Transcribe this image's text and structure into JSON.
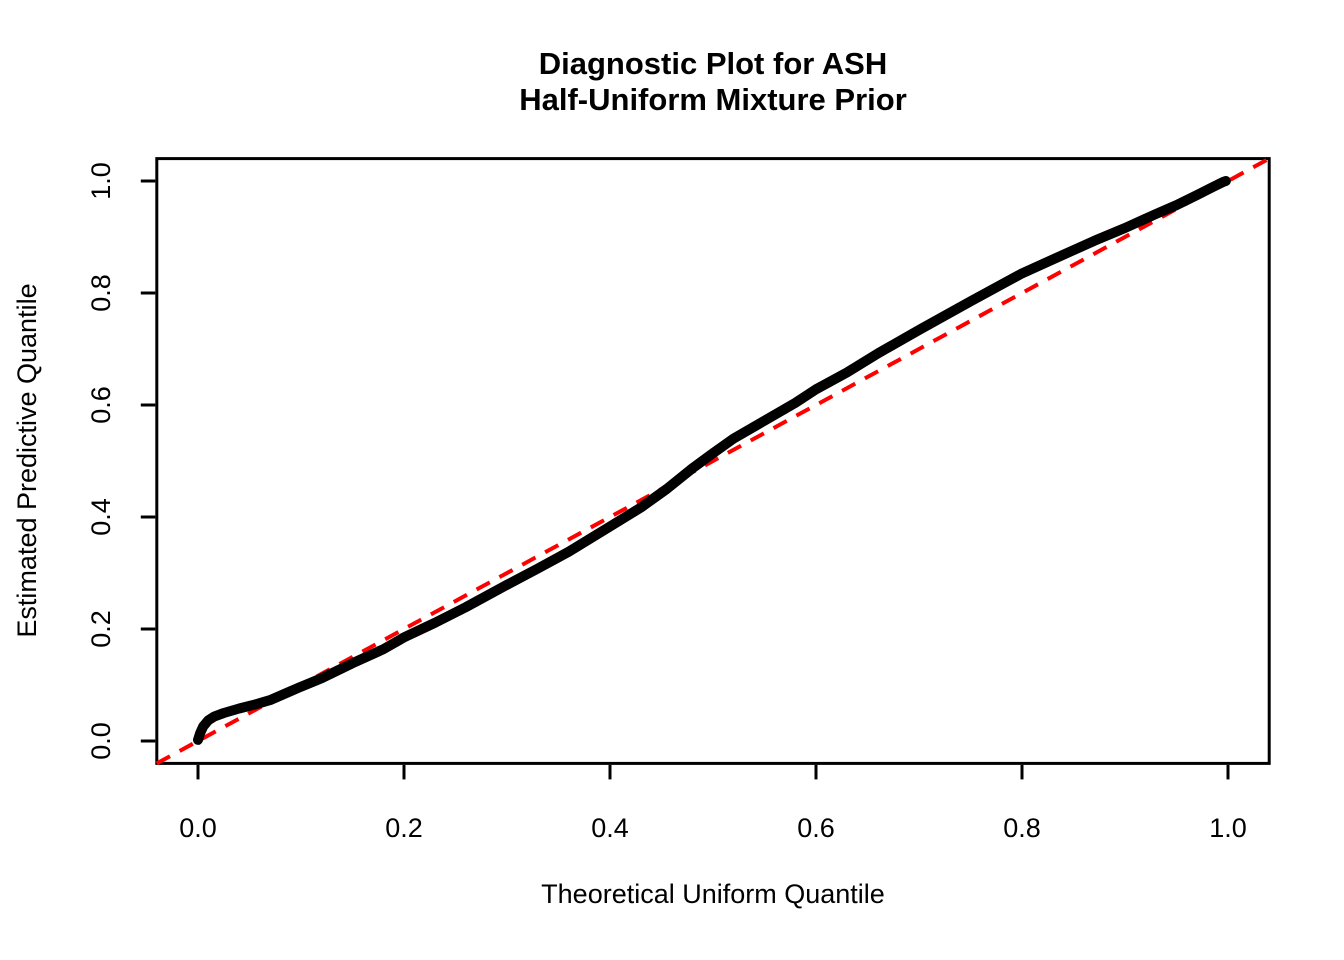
{
  "figure": {
    "title_line1": "Diagnostic Plot for ASH",
    "title_line2": "Half-Uniform Mixture Prior",
    "xlabel": "Theoretical Uniform Quantile",
    "ylabel": "Estimated Predictive Quantile"
  },
  "colors": {
    "background": "#FFFFFF",
    "axis": "#000000",
    "curve": "#000000",
    "reference": "#FF0000"
  },
  "chart_data": {
    "type": "line",
    "title": "Diagnostic Plot for ASH\nHalf-Uniform Mixture Prior",
    "xlabel": "Theoretical Uniform Quantile",
    "ylabel": "Estimated Predictive Quantile",
    "xlim": [
      -0.04,
      1.04
    ],
    "ylim": [
      -0.04,
      1.04
    ],
    "x_ticks": [
      0.0,
      0.2,
      0.4,
      0.6,
      0.8,
      1.0
    ],
    "y_ticks": [
      0.0,
      0.2,
      0.4,
      0.6,
      0.8,
      1.0
    ],
    "grid": false,
    "legend": "none",
    "series": [
      {
        "name": "estimated-predictive-quantile-curve",
        "type": "line",
        "color": "#000000",
        "line_width": 10,
        "dash": null,
        "points": [
          [
            0.0,
            0.002
          ],
          [
            0.002,
            0.014
          ],
          [
            0.005,
            0.026
          ],
          [
            0.01,
            0.037
          ],
          [
            0.016,
            0.044
          ],
          [
            0.025,
            0.05
          ],
          [
            0.04,
            0.058
          ],
          [
            0.055,
            0.065
          ],
          [
            0.07,
            0.073
          ],
          [
            0.085,
            0.085
          ],
          [
            0.1,
            0.097
          ],
          [
            0.12,
            0.112
          ],
          [
            0.15,
            0.139
          ],
          [
            0.18,
            0.164
          ],
          [
            0.2,
            0.185
          ],
          [
            0.23,
            0.211
          ],
          [
            0.26,
            0.239
          ],
          [
            0.3,
            0.279
          ],
          [
            0.33,
            0.308
          ],
          [
            0.36,
            0.338
          ],
          [
            0.4,
            0.383
          ],
          [
            0.43,
            0.417
          ],
          [
            0.455,
            0.45
          ],
          [
            0.48,
            0.487
          ],
          [
            0.5,
            0.514
          ],
          [
            0.52,
            0.54
          ],
          [
            0.55,
            0.572
          ],
          [
            0.58,
            0.604
          ],
          [
            0.6,
            0.628
          ],
          [
            0.63,
            0.658
          ],
          [
            0.66,
            0.692
          ],
          [
            0.7,
            0.734
          ],
          [
            0.75,
            0.785
          ],
          [
            0.8,
            0.835
          ],
          [
            0.83,
            0.86
          ],
          [
            0.87,
            0.893
          ],
          [
            0.9,
            0.916
          ],
          [
            0.93,
            0.941
          ],
          [
            0.95,
            0.957
          ],
          [
            0.97,
            0.975
          ],
          [
            0.985,
            0.989
          ],
          [
            0.995,
            0.998
          ],
          [
            0.998,
            1.0
          ]
        ]
      },
      {
        "name": "identity-reference-line",
        "type": "line",
        "color": "#FF0000",
        "line_width": 4,
        "dash": "15 11",
        "points": [
          [
            -0.04,
            -0.04
          ],
          [
            1.04,
            1.04
          ]
        ]
      }
    ]
  }
}
